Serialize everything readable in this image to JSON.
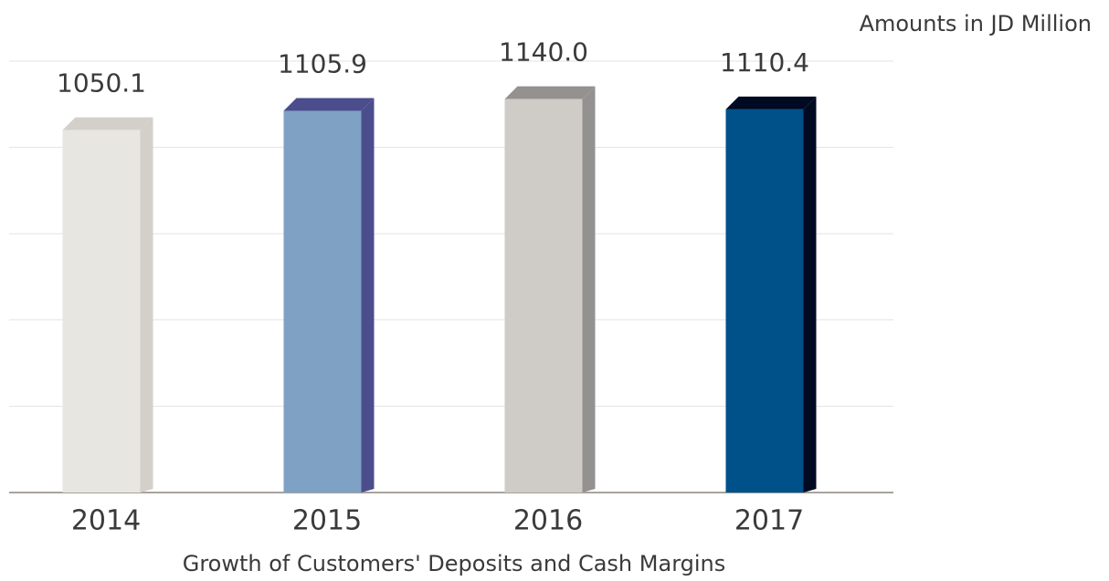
{
  "chart_data": {
    "type": "bar3d",
    "title": "Growth of Customers' Deposits and Cash Margins",
    "subtitle": "Amounts in JD Million",
    "categories": [
      "2014",
      "2015",
      "2016",
      "2017"
    ],
    "values": [
      1050.1,
      1105.9,
      1140.0,
      1110.4
    ],
    "value_labels": [
      "1050.1",
      "1105.9",
      "1140.0",
      "1110.4"
    ],
    "colors": [
      "#e8e6e1",
      "#7fa1c4",
      "#cfcbc6",
      "#00508a"
    ],
    "side_colors": [
      "#d3d0ca",
      "#4b4d8d",
      "#939290",
      "#000a22"
    ],
    "ylim": [
      0,
      1250
    ],
    "yticks": [
      0,
      250,
      500,
      750,
      1000,
      1250
    ],
    "grid": true
  }
}
